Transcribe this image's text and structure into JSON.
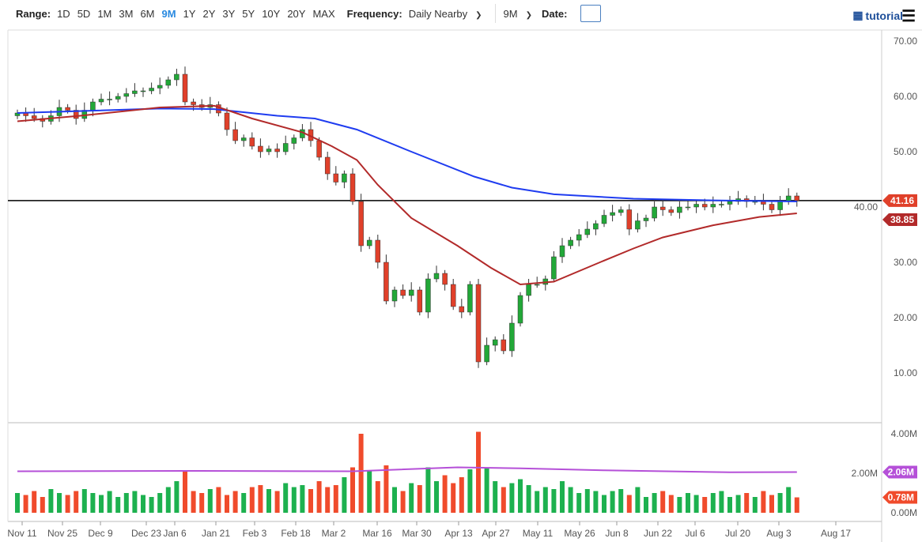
{
  "toolbar": {
    "range_label": "Range:",
    "ranges": [
      "1D",
      "5D",
      "1M",
      "3M",
      "6M",
      "9M",
      "1Y",
      "2Y",
      "3Y",
      "5Y",
      "10Y",
      "20Y",
      "MAX"
    ],
    "active_range": "9M",
    "frequency_label": "Frequency:",
    "frequency_value": "Daily Nearby",
    "period_value": "9M",
    "date_label": "Date:",
    "tutorial_label": "tutorial"
  },
  "colors": {
    "up": "#22a838",
    "down": "#e0402a",
    "ma_long": "#1f3cf0",
    "ma_short": "#b22a2a",
    "vol_avg": "#b550d8",
    "vol_up": "#1db14f",
    "vol_down": "#f04b2c"
  },
  "chart_data": {
    "type": "candlestick",
    "y_ticks": [
      "70.00",
      "60.00",
      "50.00",
      "40.00",
      "30.00",
      "20.00",
      "10.00"
    ],
    "y_range": [
      5,
      72
    ],
    "x_ticks": [
      "Nov 11",
      "Nov 25",
      "Dec 9",
      "Dec 23",
      "Jan 6",
      "Jan 21",
      "Feb 3",
      "Feb 18",
      "Mar 2",
      "Mar 16",
      "Mar 30",
      "Apr 13",
      "Apr 27",
      "May 11",
      "May 26",
      "Jun 8",
      "Jun 22",
      "Jul 6",
      "Jul 20",
      "Aug 3",
      "Aug 17"
    ],
    "closes": [
      57,
      56.5,
      56,
      55.5,
      56.5,
      58,
      57.5,
      56,
      57.5,
      59,
      59.5,
      59.5,
      60,
      60.5,
      61,
      61,
      61.5,
      62,
      63,
      64,
      59,
      58.5,
      58,
      58.5,
      57,
      54,
      52,
      52.5,
      51,
      50,
      50.5,
      50,
      51.5,
      52.5,
      54,
      52,
      49,
      46,
      44.5,
      46,
      41,
      33,
      34,
      30,
      23,
      25,
      24,
      25,
      21,
      27,
      28,
      26,
      22,
      21,
      26,
      12,
      15,
      16,
      14,
      19,
      24,
      26,
      26,
      27,
      31,
      33,
      34,
      35,
      36,
      37,
      38.5,
      39,
      39.5,
      36,
      37.5,
      38,
      40,
      39.5,
      39,
      40,
      40,
      40.5,
      40,
      40.5,
      40.5,
      41,
      41.5,
      41,
      41,
      40.5,
      39.5,
      41,
      42,
      41.16
    ],
    "ma_long": [
      [
        0,
        57
      ],
      [
        34,
        57.8
      ],
      [
        47,
        57.7
      ],
      [
        62,
        56.5
      ],
      [
        71,
        56
      ],
      [
        81,
        54
      ],
      [
        94,
        50
      ],
      [
        109,
        45.5
      ],
      [
        118,
        43.5
      ],
      [
        128,
        42.3
      ],
      [
        147,
        41.5
      ],
      [
        166,
        41.2
      ],
      [
        186,
        41
      ]
    ],
    "ma_short": [
      [
        0,
        55.5
      ],
      [
        15,
        56.5
      ],
      [
        34,
        58
      ],
      [
        47,
        58.3
      ],
      [
        56,
        56
      ],
      [
        68,
        53.5
      ],
      [
        75,
        51
      ],
      [
        81,
        48.5
      ],
      [
        86,
        44
      ],
      [
        94,
        38
      ],
      [
        105,
        33
      ],
      [
        113,
        29
      ],
      [
        120,
        26
      ],
      [
        128,
        26.5
      ],
      [
        139,
        30
      ],
      [
        147,
        32.5
      ],
      [
        154,
        34.5
      ],
      [
        166,
        36.7
      ],
      [
        177,
        38.2
      ],
      [
        186,
        38.85
      ]
    ],
    "reference_line": 41.16,
    "last_price": "41.16",
    "ma_short_last": "38.85",
    "volume": {
      "y_ticks": [
        "4.00M",
        "2.00M",
        "0.00M"
      ],
      "y_range": [
        0,
        4.4
      ],
      "values": [
        1.0,
        0.9,
        1.1,
        0.8,
        1.2,
        1.0,
        0.9,
        1.1,
        1.2,
        1.0,
        0.9,
        1.1,
        0.8,
        1.0,
        1.1,
        0.9,
        0.8,
        1.0,
        1.3,
        1.6,
        2.1,
        1.1,
        1.0,
        1.2,
        1.3,
        0.9,
        1.1,
        1.0,
        1.3,
        1.4,
        1.2,
        1.1,
        1.5,
        1.3,
        1.4,
        1.2,
        1.6,
        1.3,
        1.4,
        1.8,
        2.3,
        4.0,
        2.1,
        1.6,
        2.4,
        1.3,
        1.1,
        1.5,
        1.4,
        2.3,
        1.6,
        1.9,
        1.5,
        1.8,
        2.2,
        4.1,
        2.3,
        1.6,
        1.3,
        1.5,
        1.7,
        1.4,
        1.1,
        1.3,
        1.2,
        1.6,
        1.3,
        1.0,
        1.2,
        1.1,
        0.9,
        1.1,
        1.2,
        0.9,
        1.3,
        0.8,
        1.0,
        1.1,
        0.9,
        0.8,
        1.0,
        0.9,
        0.8,
        1.0,
        1.1,
        0.8,
        0.9,
        1.0,
        0.8,
        1.1,
        0.9,
        1.0,
        1.3,
        0.78
      ],
      "avg": [
        [
          0,
          2.1
        ],
        [
          40,
          2.12
        ],
        [
          80,
          2.1
        ],
        [
          105,
          2.3
        ],
        [
          120,
          2.25
        ],
        [
          140,
          2.15
        ],
        [
          170,
          2.05
        ],
        [
          186,
          2.06
        ]
      ],
      "avg_last": "2.06M",
      "last": "0.78M"
    }
  }
}
